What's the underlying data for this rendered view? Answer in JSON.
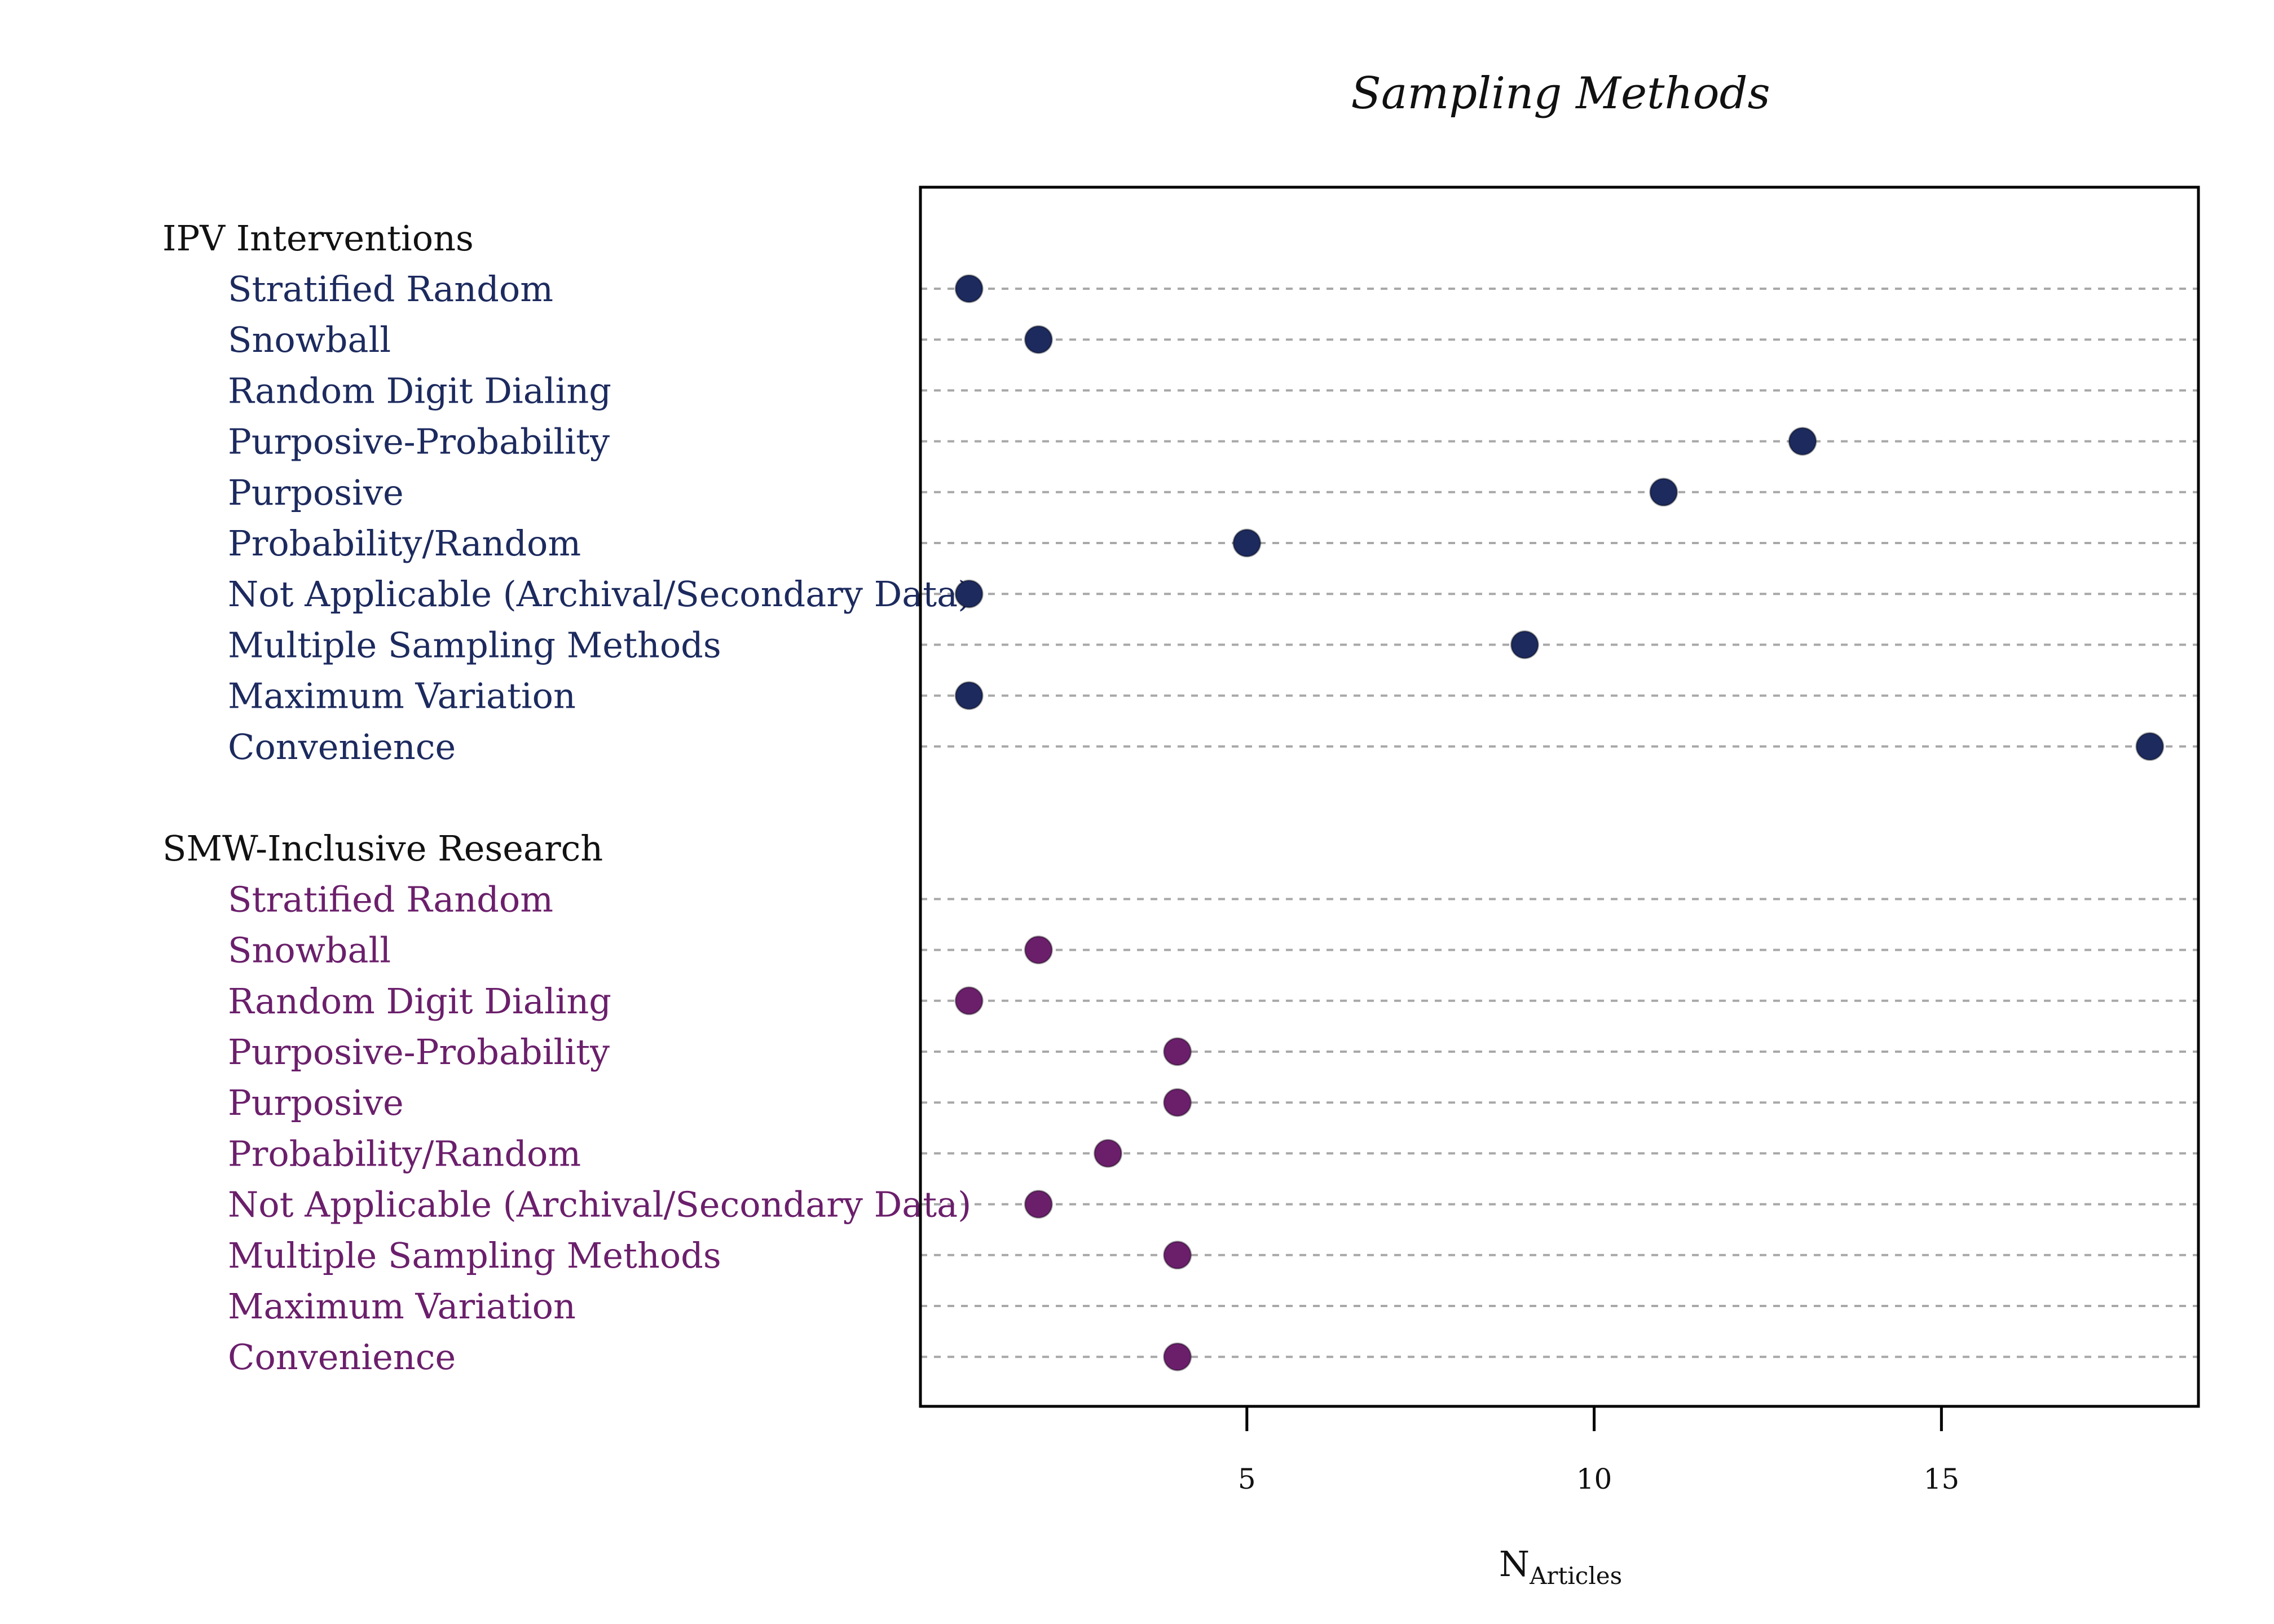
{
  "chart_data": {
    "type": "scatter",
    "title": "Sampling Methods",
    "xlabel": "N",
    "xlabel_subscript": "Articles",
    "xlim": [
      0.3,
      18.7
    ],
    "xticks": [
      5,
      10,
      15
    ],
    "grid": true,
    "groups": [
      {
        "name": "IPV Interventions",
        "color": "#1c2a5e",
        "categories": [
          "Stratified Random",
          "Snowball",
          "Random Digit Dialing",
          "Purposive-Probability",
          "Purposive",
          "Probability/Random",
          "Not Applicable (Archival/Secondary Data)",
          "Multiple Sampling Methods",
          "Maximum Variation",
          "Convenience"
        ],
        "values": [
          1,
          2,
          null,
          13,
          11,
          5,
          1,
          9,
          1,
          18
        ]
      },
      {
        "name": "SMW-Inclusive Research",
        "color": "#6b1f6b",
        "categories": [
          "Stratified Random",
          "Snowball",
          "Random Digit Dialing",
          "Purposive-Probability",
          "Purposive",
          "Probability/Random",
          "Not Applicable (Archival/Secondary Data)",
          "Multiple Sampling Methods",
          "Maximum Variation",
          "Convenience"
        ],
        "values": [
          null,
          2,
          1,
          4,
          4,
          3,
          2,
          4,
          null,
          4
        ]
      }
    ]
  }
}
